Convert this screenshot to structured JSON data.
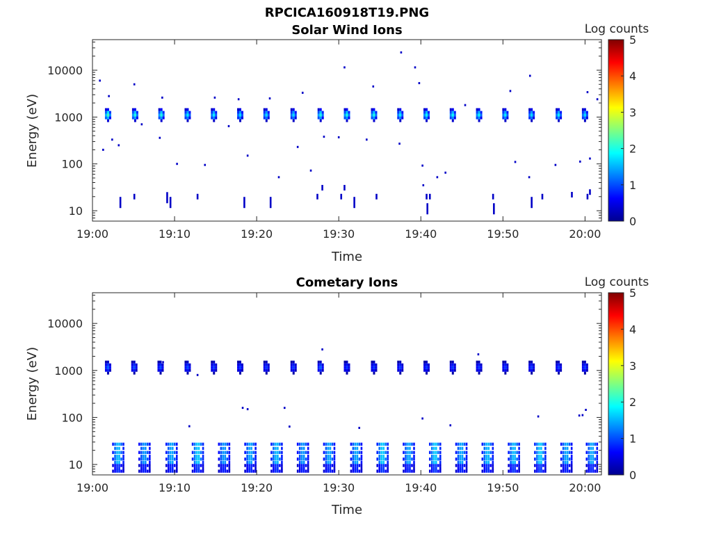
{
  "figure_title": "RPCICA160918T19.PNG",
  "chart_data": [
    {
      "type": "heatmap",
      "title": "Solar Wind Ions",
      "xlabel": "Time",
      "ylabel": "Energy (eV)",
      "x_ticks": [
        "19:00",
        "19:10",
        "19:20",
        "19:30",
        "19:40",
        "19:50",
        "20:00"
      ],
      "x_range": [
        "19:00",
        "20:02"
      ],
      "y_scale": "log",
      "y_ticks": [
        10,
        100,
        1000,
        10000
      ],
      "y_tick_labels": [
        "10",
        "100",
        "1000",
        "10000"
      ],
      "y_range": [
        6,
        45000
      ],
      "colorbar": {
        "label": "Log counts",
        "range": [
          0,
          5
        ],
        "ticks": [
          "0",
          "1",
          "2",
          "3",
          "4",
          "5"
        ],
        "colormap": "jet"
      },
      "bursts": [
        {
          "t": 1.9,
          "e": 1100,
          "level": 2.2
        },
        {
          "t": 5.2,
          "e": 1100,
          "level": 2.0
        },
        {
          "t": 8.4,
          "e": 1100,
          "level": 2.0
        },
        {
          "t": 11.6,
          "e": 1100,
          "level": 1.8
        },
        {
          "t": 14.8,
          "e": 1100,
          "level": 1.8
        },
        {
          "t": 18.0,
          "e": 1100,
          "level": 1.7
        },
        {
          "t": 21.2,
          "e": 1100,
          "level": 1.7
        },
        {
          "t": 24.5,
          "e": 1100,
          "level": 1.7
        },
        {
          "t": 27.8,
          "e": 1100,
          "level": 2.0
        },
        {
          "t": 31.0,
          "e": 1100,
          "level": 2.0
        },
        {
          "t": 34.3,
          "e": 1100,
          "level": 2.0
        },
        {
          "t": 37.5,
          "e": 1100,
          "level": 1.8
        },
        {
          "t": 40.7,
          "e": 1100,
          "level": 1.9
        },
        {
          "t": 43.9,
          "e": 1100,
          "level": 1.9
        },
        {
          "t": 47.1,
          "e": 1100,
          "level": 1.9
        },
        {
          "t": 50.3,
          "e": 1100,
          "level": 1.8
        },
        {
          "t": 53.5,
          "e": 1100,
          "level": 1.7
        },
        {
          "t": 56.8,
          "e": 1100,
          "level": 1.8
        },
        {
          "t": 60.0,
          "e": 1100,
          "level": 1.7
        }
      ],
      "sparse_counts": [
        {
          "t": 0.9,
          "e": 6000
        },
        {
          "t": 2.0,
          "e": 2800
        },
        {
          "t": 5.1,
          "e": 5000
        },
        {
          "t": 8.5,
          "e": 2600
        },
        {
          "t": 14.9,
          "e": 2600
        },
        {
          "t": 17.8,
          "e": 2400
        },
        {
          "t": 21.6,
          "e": 2500
        },
        {
          "t": 25.6,
          "e": 3300
        },
        {
          "t": 30.7,
          "e": 11500
        },
        {
          "t": 34.2,
          "e": 4500
        },
        {
          "t": 37.6,
          "e": 24000
        },
        {
          "t": 39.3,
          "e": 11500
        },
        {
          "t": 39.8,
          "e": 5300
        },
        {
          "t": 45.4,
          "e": 1800
        },
        {
          "t": 50.9,
          "e": 3600
        },
        {
          "t": 53.3,
          "e": 7600
        },
        {
          "t": 60.3,
          "e": 3400
        },
        {
          "t": 61.5,
          "e": 2400
        },
        {
          "t": 1.3,
          "e": 200
        },
        {
          "t": 2.4,
          "e": 330
        },
        {
          "t": 3.2,
          "e": 250
        },
        {
          "t": 6.0,
          "e": 700
        },
        {
          "t": 8.2,
          "e": 360
        },
        {
          "t": 10.3,
          "e": 100
        },
        {
          "t": 13.7,
          "e": 95
        },
        {
          "t": 16.6,
          "e": 640
        },
        {
          "t": 18.9,
          "e": 150
        },
        {
          "t": 22.7,
          "e": 52
        },
        {
          "t": 25.0,
          "e": 230
        },
        {
          "t": 26.6,
          "e": 72
        },
        {
          "t": 28.2,
          "e": 380
        },
        {
          "t": 30.0,
          "e": 370
        },
        {
          "t": 33.4,
          "e": 330
        },
        {
          "t": 37.4,
          "e": 270
        },
        {
          "t": 40.2,
          "e": 92
        },
        {
          "t": 40.3,
          "e": 35
        },
        {
          "t": 42.0,
          "e": 52
        },
        {
          "t": 43.0,
          "e": 65
        },
        {
          "t": 51.5,
          "e": 110
        },
        {
          "t": 53.2,
          "e": 52
        },
        {
          "t": 56.4,
          "e": 95
        },
        {
          "t": 59.4,
          "e": 112
        },
        {
          "t": 60.6,
          "e": 130
        }
      ],
      "low_energy_counts": [
        {
          "t": 3.4,
          "e": 15,
          "span": 2
        },
        {
          "t": 5.1,
          "e": 20,
          "span": 1
        },
        {
          "t": 9.1,
          "e": 19,
          "span": 2
        },
        {
          "t": 9.5,
          "e": 15,
          "span": 2
        },
        {
          "t": 12.8,
          "e": 20,
          "span": 1
        },
        {
          "t": 18.5,
          "e": 15,
          "span": 2
        },
        {
          "t": 21.7,
          "e": 15,
          "span": 2
        },
        {
          "t": 27.4,
          "e": 20,
          "span": 1
        },
        {
          "t": 28.0,
          "e": 31,
          "span": 1
        },
        {
          "t": 30.3,
          "e": 20,
          "span": 1
        },
        {
          "t": 30.7,
          "e": 31,
          "span": 1
        },
        {
          "t": 31.9,
          "e": 15,
          "span": 2
        },
        {
          "t": 34.6,
          "e": 20,
          "span": 1
        },
        {
          "t": 40.7,
          "e": 20,
          "span": 1
        },
        {
          "t": 40.8,
          "e": 11,
          "span": 2
        },
        {
          "t": 41.1,
          "e": 20,
          "span": 1
        },
        {
          "t": 48.8,
          "e": 20,
          "span": 1
        },
        {
          "t": 48.9,
          "e": 11,
          "span": 2
        },
        {
          "t": 53.5,
          "e": 15,
          "span": 2
        },
        {
          "t": 54.8,
          "e": 20,
          "span": 1
        },
        {
          "t": 58.4,
          "e": 22,
          "span": 1
        },
        {
          "t": 60.3,
          "e": 20,
          "span": 1
        },
        {
          "t": 60.6,
          "e": 25,
          "span": 1
        }
      ]
    },
    {
      "type": "heatmap",
      "title": "Cometary Ions",
      "xlabel": "Time",
      "ylabel": "Energy (eV)",
      "x_ticks": [
        "19:00",
        "19:10",
        "19:20",
        "19:30",
        "19:40",
        "19:50",
        "20:00"
      ],
      "x_range": [
        "19:00",
        "20:02"
      ],
      "y_scale": "log",
      "y_ticks": [
        10,
        100,
        1000,
        10000
      ],
      "y_tick_labels": [
        "10",
        "100",
        "1000",
        "10000"
      ],
      "y_range": [
        6,
        45000
      ],
      "colorbar": {
        "label": "Log counts",
        "range": [
          0,
          5
        ],
        "ticks": [
          "0",
          "1",
          "2",
          "3",
          "4",
          "5"
        ],
        "colormap": "jet"
      },
      "bursts": [
        {
          "t": 1.9,
          "e": 1150,
          "level": 1.1
        },
        {
          "t": 5.1,
          "e": 1150,
          "level": 1.0
        },
        {
          "t": 8.3,
          "e": 1150,
          "level": 1.0
        },
        {
          "t": 11.6,
          "e": 1150,
          "level": 1.0
        },
        {
          "t": 14.8,
          "e": 1150,
          "level": 0.9
        },
        {
          "t": 18.0,
          "e": 1150,
          "level": 0.9
        },
        {
          "t": 21.2,
          "e": 1150,
          "level": 0.9
        },
        {
          "t": 24.5,
          "e": 1150,
          "level": 0.9
        },
        {
          "t": 27.8,
          "e": 1150,
          "level": 1.1
        },
        {
          "t": 31.0,
          "e": 1150,
          "level": 0.9
        },
        {
          "t": 34.3,
          "e": 1150,
          "level": 0.9
        },
        {
          "t": 37.5,
          "e": 1150,
          "level": 0.9
        },
        {
          "t": 40.7,
          "e": 1150,
          "level": 0.9
        },
        {
          "t": 43.9,
          "e": 1150,
          "level": 0.9
        },
        {
          "t": 47.1,
          "e": 1150,
          "level": 0.9
        },
        {
          "t": 50.3,
          "e": 1150,
          "level": 0.9
        },
        {
          "t": 53.5,
          "e": 1150,
          "level": 0.9
        },
        {
          "t": 56.8,
          "e": 1150,
          "level": 0.9
        },
        {
          "t": 60.0,
          "e": 1150,
          "level": 0.9
        }
      ],
      "low_energy_bands": [
        {
          "t": 2.9,
          "level": 1.7
        },
        {
          "t": 6.1,
          "level": 1.5
        },
        {
          "t": 9.4,
          "level": 1.6
        },
        {
          "t": 12.6,
          "level": 1.8
        },
        {
          "t": 15.8,
          "level": 1.5
        },
        {
          "t": 19.0,
          "level": 1.6
        },
        {
          "t": 22.2,
          "level": 1.7
        },
        {
          "t": 25.4,
          "level": 1.5
        },
        {
          "t": 28.6,
          "level": 1.6
        },
        {
          "t": 31.9,
          "level": 1.6
        },
        {
          "t": 35.1,
          "level": 1.8
        },
        {
          "t": 38.3,
          "level": 1.6
        },
        {
          "t": 41.5,
          "level": 1.8
        },
        {
          "t": 44.7,
          "level": 1.6
        },
        {
          "t": 47.9,
          "level": 1.7
        },
        {
          "t": 51.1,
          "level": 1.7
        },
        {
          "t": 54.3,
          "level": 1.8
        },
        {
          "t": 57.5,
          "level": 1.6
        },
        {
          "t": 60.6,
          "level": 1.6
        }
      ],
      "sparse_counts": [
        {
          "t": 8.6,
          "e": 1500
        },
        {
          "t": 12.8,
          "e": 800
        },
        {
          "t": 11.8,
          "e": 65
        },
        {
          "t": 18.3,
          "e": 160
        },
        {
          "t": 18.9,
          "e": 150
        },
        {
          "t": 23.4,
          "e": 160
        },
        {
          "t": 24.0,
          "e": 64
        },
        {
          "t": 28.0,
          "e": 2800
        },
        {
          "t": 32.5,
          "e": 60
        },
        {
          "t": 40.2,
          "e": 95
        },
        {
          "t": 43.6,
          "e": 68
        },
        {
          "t": 47.0,
          "e": 2200
        },
        {
          "t": 54.3,
          "e": 105
        },
        {
          "t": 59.3,
          "e": 110
        },
        {
          "t": 59.7,
          "e": 112
        },
        {
          "t": 60.1,
          "e": 145
        }
      ]
    }
  ]
}
